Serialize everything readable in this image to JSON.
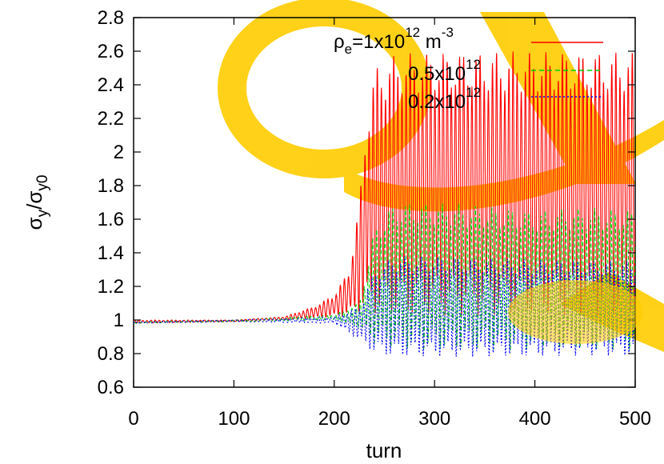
{
  "chart_data": {
    "type": "line",
    "title": "",
    "xlabel": "turn",
    "ylabel": {
      "base": "σ",
      "sub": "y",
      "divider": "/",
      "base2": "σ",
      "sub2": "y0"
    },
    "xlim": [
      0,
      500
    ],
    "ylim": [
      0.6,
      2.8
    ],
    "xticks": [
      "0",
      "100",
      "200",
      "300",
      "400",
      "500"
    ],
    "yticks": [
      "0.6",
      "0.8",
      "1",
      "1.2",
      "1.4",
      "1.6",
      "1.8",
      "2",
      "2.2",
      "2.4",
      "2.6",
      "2.8"
    ],
    "grid": false,
    "legend_position": "top-right",
    "legend": {
      "line1": {
        "sym": "ρ",
        "sym_sub": "e",
        "text": "=1x10",
        "exp": "12",
        "unit": " m",
        "unit_exp": "-3"
      },
      "line2": {
        "text": "0.5x10",
        "exp": "12"
      },
      "line3": {
        "text": "0.2x10",
        "exp": "12"
      }
    },
    "series": [
      {
        "color": "#ff0000",
        "style": "solid",
        "envelope": {
          "x": [
            0,
            100,
            150,
            180,
            200,
            215,
            225,
            232,
            240,
            260,
            300,
            350,
            400,
            450,
            500
          ],
          "upper": [
            1.0,
            1.0,
            1.02,
            1.08,
            1.15,
            1.3,
            1.7,
            2.2,
            2.5,
            2.58,
            2.6,
            2.6,
            2.6,
            2.6,
            2.6
          ],
          "lower": [
            0.98,
            0.99,
            1.0,
            1.01,
            1.02,
            1.03,
            1.05,
            1.05,
            1.02,
            1.02,
            1.02,
            1.02,
            1.02,
            1.02,
            1.02
          ]
        }
      },
      {
        "color": "#00cc00",
        "style": "dashed",
        "envelope": {
          "x": [
            0,
            100,
            200,
            225,
            240,
            260,
            300,
            350,
            400,
            450,
            500
          ],
          "upper": [
            0.99,
            1.0,
            1.03,
            1.1,
            1.55,
            1.7,
            1.7,
            1.68,
            1.65,
            1.67,
            1.66
          ],
          "lower": [
            0.98,
            0.99,
            1.0,
            0.95,
            0.86,
            0.83,
            0.82,
            0.82,
            0.82,
            0.82,
            0.82
          ]
        }
      },
      {
        "color": "#0000ff",
        "style": "dotted",
        "envelope": {
          "x": [
            0,
            100,
            200,
            225,
            240,
            260,
            300,
            350,
            400,
            450,
            500
          ],
          "upper": [
            0.99,
            1.0,
            1.02,
            1.08,
            1.3,
            1.38,
            1.38,
            1.37,
            1.36,
            1.36,
            1.35
          ],
          "lower": [
            0.98,
            0.99,
            0.98,
            0.88,
            0.8,
            0.78,
            0.78,
            0.78,
            0.78,
            0.79,
            0.78
          ]
        }
      }
    ]
  },
  "colors": {
    "watermark": "#ffcc00"
  }
}
